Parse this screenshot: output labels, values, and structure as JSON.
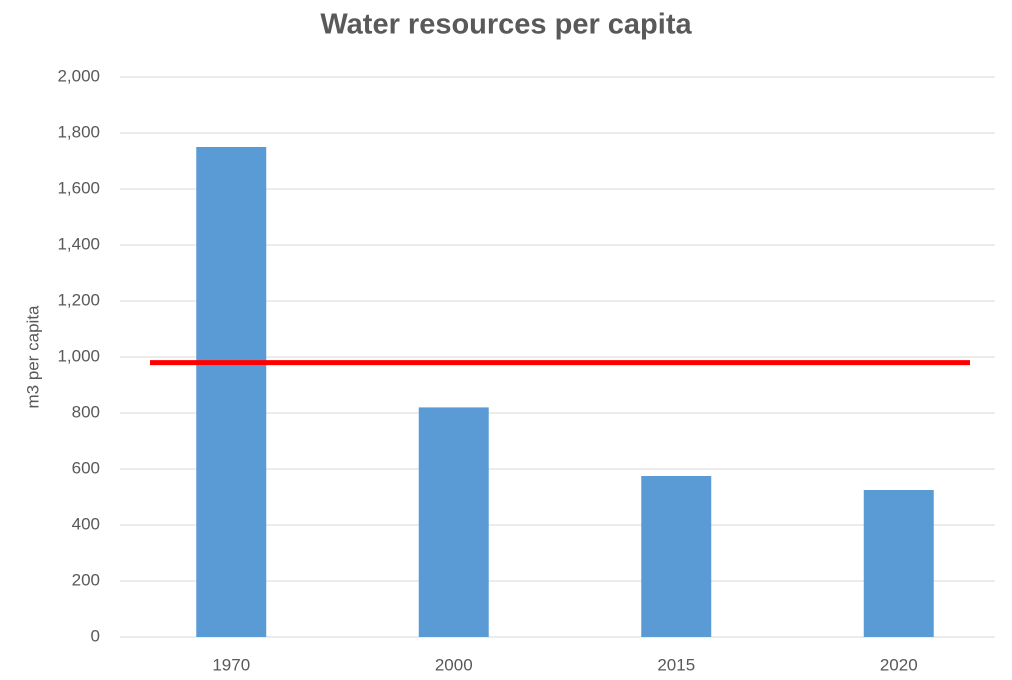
{
  "chart_data": {
    "type": "bar",
    "title": "Water resources per capita",
    "y_label": "m3 per capita",
    "categories": [
      "1970",
      "2000",
      "2015",
      "2020"
    ],
    "values": [
      1750,
      820,
      575,
      525
    ],
    "color": "#5b9bd5",
    "reference_line": {
      "value": 980,
      "color": "#ff0000"
    },
    "ylim": [
      0,
      2000
    ],
    "yticks": [
      0,
      200,
      400,
      600,
      800,
      {
        "value": 1000,
        "label": "1,000"
      },
      {
        "value": 1200,
        "label": "1,200"
      },
      {
        "value": 1400,
        "label": "1,400"
      },
      {
        "value": 1600,
        "label": "1,600"
      },
      {
        "value": 1800,
        "label": "1,800"
      },
      {
        "value": 2000,
        "label": "2,000"
      }
    ],
    "grid": true
  }
}
